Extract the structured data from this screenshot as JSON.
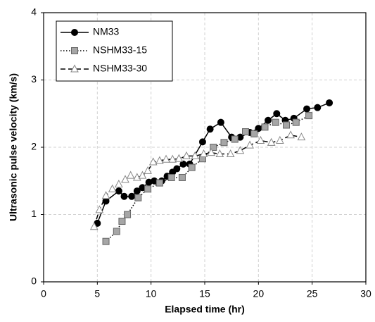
{
  "chart_data": {
    "type": "line",
    "x_label": "Elapsed time (hr)",
    "y_label": "Ultrasonic pulse velocity (km/s)",
    "xlim": [
      0,
      30
    ],
    "xticks": [
      0,
      5,
      10,
      15,
      20,
      25,
      30
    ],
    "ylim": [
      0,
      4
    ],
    "yticks": [
      0,
      1,
      2,
      3,
      4
    ],
    "grid": true,
    "legend": "top-left",
    "series": [
      {
        "name": "NM33",
        "color": "#000000",
        "marker": "circle",
        "dash": "solid",
        "x": [
          5.0,
          5.8,
          7.0,
          7.5,
          8.2,
          8.7,
          9.2,
          9.8,
          10.3,
          11.0,
          11.5,
          12.0,
          12.4,
          13.0,
          13.6,
          14.8,
          15.5,
          16.5,
          17.5,
          18.3,
          19.2,
          20.0,
          20.9,
          21.7,
          22.5,
          23.3,
          24.5,
          25.5,
          26.6
        ],
        "values": [
          0.87,
          1.2,
          1.35,
          1.27,
          1.27,
          1.35,
          1.4,
          1.48,
          1.5,
          1.5,
          1.57,
          1.63,
          1.68,
          1.75,
          1.75,
          2.08,
          2.27,
          2.37,
          2.15,
          2.15,
          2.22,
          2.28,
          2.4,
          2.5,
          2.4,
          2.43,
          2.57,
          2.59,
          2.66
        ]
      },
      {
        "name": "NSHM33-15",
        "color": "#a6a6a6",
        "marker": "square",
        "dash": "dotted",
        "x": [
          5.8,
          6.8,
          7.3,
          7.8,
          8.8,
          9.7,
          10.8,
          11.9,
          12.9,
          13.8,
          14.8,
          15.8,
          16.8,
          17.8,
          18.8,
          19.6,
          20.6,
          21.6,
          22.6,
          23.5,
          24.7
        ],
        "values": [
          0.6,
          0.75,
          0.9,
          1.0,
          1.25,
          1.38,
          1.47,
          1.55,
          1.55,
          1.7,
          1.83,
          2.0,
          2.07,
          2.12,
          2.23,
          2.2,
          2.3,
          2.37,
          2.33,
          2.37,
          2.47
        ]
      },
      {
        "name": "NSHM33-30",
        "color": "#ffffff",
        "marker": "triangle",
        "dash": "dashed",
        "x": [
          4.7,
          5.2,
          5.8,
          6.4,
          7.0,
          7.6,
          8.1,
          8.7,
          9.2,
          9.7,
          10.2,
          10.8,
          11.4,
          12.0,
          12.6,
          13.3,
          14.1,
          14.9,
          15.6,
          16.4,
          17.4,
          18.3,
          19.2,
          20.2,
          21.2,
          22.0,
          23.0,
          24.0
        ],
        "values": [
          0.82,
          1.07,
          1.28,
          1.38,
          1.45,
          1.52,
          1.58,
          1.55,
          1.58,
          1.65,
          1.78,
          1.8,
          1.82,
          1.82,
          1.83,
          1.87,
          1.87,
          1.9,
          1.92,
          1.9,
          1.9,
          1.95,
          2.03,
          2.1,
          2.07,
          2.1,
          2.18,
          2.15
        ]
      }
    ]
  }
}
